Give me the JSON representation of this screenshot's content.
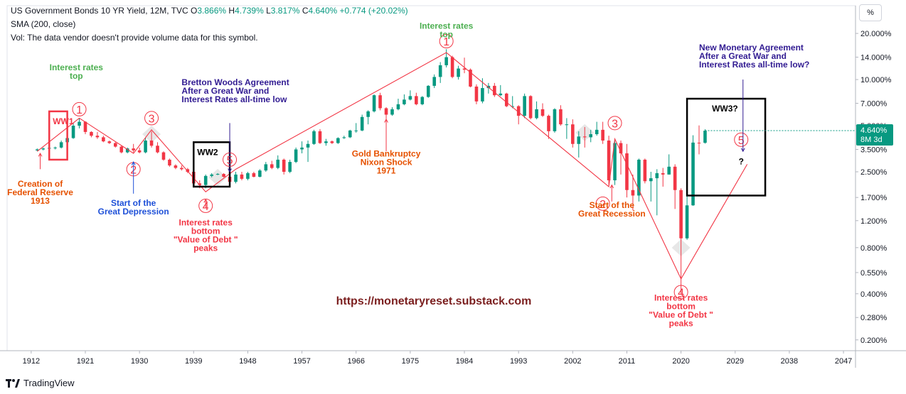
{
  "header": {
    "title": "US Government Bonds 10 YR Yield, 12M, TVC",
    "ohlc": [
      {
        "label": "O",
        "value": "3.866%"
      },
      {
        "label": "H",
        "value": "4.739%"
      },
      {
        "label": "L",
        "value": "3.817%"
      },
      {
        "label": "C",
        "value": "4.640%"
      }
    ],
    "change": "+0.774 (+20.02%)",
    "sma": "SMA (200, close)",
    "vol": "Vol: The data vendor doesn't provide volume data for this symbol."
  },
  "unit_button": "%",
  "price_tag": {
    "value": "4.640%",
    "countdown": "8M 3d"
  },
  "brand": "TradingView",
  "watermark": "https://monetaryreset.substack.com",
  "colors": {
    "up": "#26a69a",
    "down": "#ef5350",
    "up_body": "#089981",
    "down_body": "#f23645",
    "wave": "#f23645",
    "green_note": "#4caf50",
    "orange_note": "#e65100",
    "blue_note": "#1e50d8",
    "purple_note": "#311b92",
    "maroon": "#7b1f1f"
  },
  "chart_data": {
    "type": "candlestick",
    "title": "US Government Bonds 10 YR Yield, 12M, TVC",
    "yscale": "log",
    "ylim": [
      0.17,
      24
    ],
    "xlim": [
      1908,
      2049
    ],
    "x_ticks": [
      "1912",
      "1921",
      "1930",
      "1939",
      "1948",
      "1957",
      "1966",
      "1975",
      "1984",
      "1993",
      "2002",
      "2011",
      "2020",
      "2029",
      "2038",
      "2047"
    ],
    "x_tick_values": [
      1912,
      1921,
      1930,
      1939,
      1948,
      1957,
      1966,
      1975,
      1984,
      1993,
      2002,
      2011,
      2020,
      2029,
      2038,
      2047
    ],
    "y_ticks": [
      "20.000%",
      "14.000%",
      "10.000%",
      "7.000%",
      "5.000%",
      "3.500%",
      "2.500%",
      "1.700%",
      "1.200%",
      "0.800%",
      "0.550%",
      "0.400%",
      "0.280%",
      "0.200%"
    ],
    "y_tick_values": [
      20,
      14,
      10,
      7,
      5,
      3.5,
      2.5,
      1.7,
      1.2,
      0.8,
      0.55,
      0.4,
      0.28,
      0.2
    ],
    "candles": [
      [
        1913,
        3.45,
        3.55,
        3.4,
        3.5
      ],
      [
        1914,
        3.5,
        3.6,
        3.45,
        3.55
      ],
      [
        1915,
        3.55,
        3.6,
        3.5,
        3.58
      ],
      [
        1916,
        3.58,
        3.65,
        3.5,
        3.6
      ],
      [
        1917,
        3.6,
        4.0,
        3.55,
        3.9
      ],
      [
        1918,
        3.9,
        4.2,
        3.75,
        4.15
      ],
      [
        1919,
        4.15,
        5.2,
        4.1,
        5.0
      ],
      [
        1920,
        5.0,
        5.6,
        4.8,
        5.3
      ],
      [
        1921,
        5.3,
        5.35,
        4.4,
        4.55
      ],
      [
        1922,
        4.55,
        4.6,
        4.2,
        4.3
      ],
      [
        1923,
        4.3,
        4.55,
        4.1,
        4.2
      ],
      [
        1924,
        4.2,
        4.3,
        3.9,
        3.95
      ],
      [
        1925,
        3.95,
        4.0,
        3.8,
        3.85
      ],
      [
        1926,
        3.85,
        3.9,
        3.6,
        3.65
      ],
      [
        1927,
        3.65,
        3.7,
        3.3,
        3.35
      ],
      [
        1928,
        3.35,
        3.6,
        3.3,
        3.55
      ],
      [
        1929,
        3.55,
        3.8,
        3.35,
        3.45
      ],
      [
        1930,
        3.45,
        3.6,
        3.3,
        3.35
      ],
      [
        1931,
        3.35,
        4.2,
        3.3,
        4.0
      ],
      [
        1932,
        4.0,
        4.6,
        3.6,
        3.7
      ],
      [
        1933,
        3.7,
        3.9,
        3.3,
        3.35
      ],
      [
        1934,
        3.35,
        3.4,
        2.95,
        3.0
      ],
      [
        1935,
        3.0,
        3.05,
        2.7,
        2.75
      ],
      [
        1936,
        2.75,
        2.8,
        2.6,
        2.65
      ],
      [
        1937,
        2.65,
        2.75,
        2.55,
        2.6
      ],
      [
        1938,
        2.6,
        2.65,
        2.45,
        2.5
      ],
      [
        1939,
        2.5,
        2.55,
        2.0,
        2.1
      ],
      [
        1940,
        2.1,
        2.2,
        1.95,
        2.05
      ],
      [
        1941,
        2.05,
        2.4,
        1.95,
        2.35
      ],
      [
        1942,
        2.35,
        2.45,
        2.3,
        2.4
      ],
      [
        1943,
        2.4,
        2.45,
        2.38,
        2.42
      ],
      [
        1944,
        2.42,
        2.45,
        2.3,
        2.32
      ],
      [
        1945,
        2.32,
        2.35,
        2.1,
        2.15
      ],
      [
        1946,
        2.15,
        2.5,
        2.1,
        2.4
      ],
      [
        1947,
        2.4,
        2.5,
        2.2,
        2.25
      ],
      [
        1948,
        2.25,
        2.5,
        2.2,
        2.45
      ],
      [
        1949,
        2.45,
        2.5,
        2.3,
        2.32
      ],
      [
        1950,
        2.32,
        2.6,
        2.3,
        2.55
      ],
      [
        1951,
        2.55,
        2.9,
        2.5,
        2.8
      ],
      [
        1952,
        2.8,
        2.95,
        2.6,
        2.65
      ],
      [
        1953,
        2.65,
        3.2,
        2.6,
        3.0
      ],
      [
        1954,
        3.0,
        3.05,
        2.4,
        2.5
      ],
      [
        1955,
        2.5,
        3.0,
        2.45,
        2.9
      ],
      [
        1956,
        2.9,
        3.6,
        2.85,
        3.5
      ],
      [
        1957,
        3.5,
        3.95,
        3.3,
        3.6
      ],
      [
        1958,
        3.6,
        4.0,
        2.9,
        3.8
      ],
      [
        1959,
        3.8,
        4.7,
        3.75,
        4.6
      ],
      [
        1960,
        4.6,
        4.75,
        3.8,
        3.85
      ],
      [
        1961,
        3.85,
        4.1,
        3.7,
        3.95
      ],
      [
        1962,
        3.95,
        4.0,
        3.8,
        3.85
      ],
      [
        1963,
        3.85,
        4.2,
        3.8,
        4.15
      ],
      [
        1964,
        4.15,
        4.3,
        4.1,
        4.2
      ],
      [
        1965,
        4.2,
        4.7,
        4.15,
        4.65
      ],
      [
        1966,
        4.65,
        5.2,
        4.5,
        4.65
      ],
      [
        1967,
        4.65,
        5.9,
        4.6,
        5.7
      ],
      [
        1968,
        5.7,
        6.3,
        5.1,
        6.2
      ],
      [
        1969,
        6.2,
        8.0,
        6.1,
        7.9
      ],
      [
        1970,
        7.9,
        8.2,
        6.3,
        6.5
      ],
      [
        1971,
        6.5,
        6.6,
        5.5,
        5.9
      ],
      [
        1972,
        5.9,
        6.6,
        5.8,
        6.4
      ],
      [
        1973,
        6.4,
        7.5,
        6.3,
        6.9
      ],
      [
        1974,
        6.9,
        8.0,
        6.8,
        7.4
      ],
      [
        1975,
        7.4,
        8.5,
        7.3,
        7.8
      ],
      [
        1976,
        7.8,
        8.2,
        6.8,
        6.9
      ],
      [
        1977,
        6.9,
        7.8,
        6.8,
        7.7
      ],
      [
        1978,
        7.7,
        9.2,
        7.6,
        9.1
      ],
      [
        1979,
        9.1,
        10.8,
        8.8,
        10.4
      ],
      [
        1980,
        10.4,
        13.0,
        9.5,
        12.4
      ],
      [
        1981,
        12.4,
        15.8,
        12.0,
        14.0
      ],
      [
        1982,
        14.0,
        14.3,
        10.2,
        10.4
      ],
      [
        1983,
        10.4,
        12.3,
        10.0,
        11.8
      ],
      [
        1984,
        11.8,
        13.9,
        11.0,
        11.6
      ],
      [
        1985,
        11.6,
        11.8,
        8.9,
        9.0
      ],
      [
        1986,
        9.0,
        9.3,
        6.9,
        7.2
      ],
      [
        1987,
        7.2,
        10.2,
        7.0,
        8.8
      ],
      [
        1988,
        8.8,
        9.5,
        8.1,
        9.1
      ],
      [
        1989,
        9.1,
        9.5,
        7.7,
        7.9
      ],
      [
        1990,
        7.9,
        9.2,
        7.8,
        8.1
      ],
      [
        1991,
        8.1,
        8.2,
        6.6,
        6.7
      ],
      [
        1992,
        6.7,
        7.8,
        6.5,
        6.7
      ],
      [
        1993,
        6.7,
        6.8,
        5.1,
        5.8
      ],
      [
        1994,
        5.8,
        8.1,
        5.6,
        7.8
      ],
      [
        1995,
        7.8,
        7.9,
        5.5,
        5.6
      ],
      [
        1996,
        5.6,
        7.2,
        5.5,
        6.4
      ],
      [
        1997,
        6.4,
        7.0,
        5.7,
        5.8
      ],
      [
        1998,
        5.8,
        5.9,
        4.1,
        4.6
      ],
      [
        1999,
        4.6,
        6.5,
        4.5,
        6.4
      ],
      [
        2000,
        6.4,
        6.8,
        5.0,
        5.1
      ],
      [
        2001,
        5.1,
        5.6,
        4.1,
        5.1
      ],
      [
        2002,
        5.1,
        5.5,
        3.6,
        3.8
      ],
      [
        2003,
        3.8,
        4.6,
        3.1,
        4.25
      ],
      [
        2004,
        4.25,
        4.9,
        3.6,
        4.2
      ],
      [
        2005,
        4.2,
        4.7,
        3.9,
        4.4
      ],
      [
        2006,
        4.4,
        5.3,
        4.3,
        4.7
      ],
      [
        2007,
        4.7,
        5.3,
        3.8,
        4.0
      ],
      [
        2008,
        4.0,
        4.3,
        2.05,
        2.2
      ],
      [
        2009,
        2.2,
        4.0,
        2.05,
        3.85
      ],
      [
        2010,
        3.85,
        4.0,
        2.4,
        3.3
      ],
      [
        2011,
        3.3,
        3.8,
        1.7,
        1.9
      ],
      [
        2012,
        1.9,
        2.4,
        1.4,
        1.75
      ],
      [
        2013,
        1.75,
        3.05,
        1.6,
        3.0
      ],
      [
        2014,
        3.0,
        3.05,
        2.1,
        2.17
      ],
      [
        2015,
        2.17,
        2.5,
        1.6,
        2.27
      ],
      [
        2016,
        2.27,
        2.6,
        1.3,
        2.45
      ],
      [
        2017,
        2.45,
        2.65,
        2.0,
        2.4
      ],
      [
        2018,
        2.4,
        3.25,
        2.4,
        2.7
      ],
      [
        2019,
        2.7,
        2.8,
        1.43,
        1.9
      ],
      [
        2020,
        1.9,
        1.95,
        0.4,
        0.92
      ],
      [
        2021,
        0.92,
        1.78,
        0.9,
        1.51
      ],
      [
        2022,
        1.51,
        4.33,
        1.5,
        3.88
      ],
      [
        2023,
        3.87,
        5.02,
        3.25,
        3.86
      ],
      [
        2024,
        3.866,
        4.739,
        3.817,
        4.64
      ]
    ],
    "wave_points": [
      [
        1913,
        3.4
      ],
      [
        1920,
        5.6
      ],
      [
        1929,
        3.3
      ],
      [
        1932,
        4.7
      ],
      [
        1941,
        1.85
      ],
      [
        1946,
        2.6
      ],
      [
        1981,
        15.0
      ],
      [
        2008,
        2.0
      ],
      [
        2009,
        4.1
      ],
      [
        2020,
        0.5
      ],
      [
        2031,
        2.8
      ]
    ],
    "wave_labels": [
      {
        "text": "1",
        "x": 1920,
        "y": 6.4
      },
      {
        "text": "2",
        "x": 1929,
        "y": 2.6
      },
      {
        "text": "3",
        "x": 1932,
        "y": 5.6
      },
      {
        "text": "4",
        "x": 1941,
        "y": 1.5
      },
      {
        "text": "5",
        "x": 1945,
        "y": 3.0
      },
      {
        "text": "1",
        "x": 1981,
        "y": 17.8
      },
      {
        "text": "2",
        "x": 2007,
        "y": 1.55
      },
      {
        "text": "3",
        "x": 2009,
        "y": 5.2
      },
      {
        "text": "4",
        "x": 2020,
        "y": 0.41
      },
      {
        "text": "5",
        "x": 2030,
        "y": 4.05
      }
    ],
    "boxes": [
      {
        "label": "WW1",
        "x0": 1915,
        "x1": 1918,
        "y0": 3.0,
        "y1": 6.2,
        "color": "#f23645"
      },
      {
        "label": "WW2",
        "x0": 1939,
        "x1": 1945,
        "y0": 2.0,
        "y1": 3.9,
        "color": "#000000"
      },
      {
        "label": "WW3?",
        "x0": 2021,
        "x1": 2034,
        "y0": 1.75,
        "y1": 7.5,
        "color": "#000000"
      }
    ],
    "annotations": [
      {
        "lines": [
          "Interest rates",
          "top"
        ],
        "x": 1919.5,
        "y": 11.5,
        "color": "#4caf50"
      },
      {
        "lines": [
          "Interest rates",
          "top"
        ],
        "x": 1981,
        "y": 21.5,
        "color": "#4caf50"
      },
      {
        "lines": [
          "Creation of",
          "Federal Reserve",
          "1913"
        ],
        "x": 1913.5,
        "y": 2.0,
        "color": "#e65100"
      },
      {
        "lines": [
          "Start of the",
          "Great Depression"
        ],
        "x": 1929,
        "y": 1.5,
        "color": "#1e50d8"
      },
      {
        "lines": [
          "Interest rates",
          "bottom",
          "\"Value of Debt \"",
          "peaks"
        ],
        "x": 1941,
        "y": 1.12,
        "color": "#f23645"
      },
      {
        "lines": [
          "Bretton Woods Agreement",
          "After a Great War and",
          "Interest Rates all-time low"
        ],
        "x": 1937,
        "y": 9.2,
        "color": "#311b92",
        "align": "start"
      },
      {
        "lines": [
          "Gold Bankruptcy",
          "Nixon Shock",
          "1971"
        ],
        "x": 1971,
        "y": 3.15,
        "color": "#e65100"
      },
      {
        "lines": [
          "Start of the",
          "Great Recession"
        ],
        "x": 2008.5,
        "y": 1.45,
        "color": "#e65100"
      },
      {
        "lines": [
          "Interest rates",
          "bottom",
          "\"Value of Debt \"",
          "peaks"
        ],
        "x": 2020,
        "y": 0.36,
        "color": "#f23645"
      },
      {
        "lines": [
          "New Monetary Agreement",
          "After a Great War and",
          "Interest Rates all-time low?"
        ],
        "x": 2023,
        "y": 15.5,
        "color": "#311b92",
        "align": "start"
      },
      {
        "lines": [
          "?"
        ],
        "x": 2030,
        "y": 2.8,
        "color": "#000000"
      }
    ]
  }
}
